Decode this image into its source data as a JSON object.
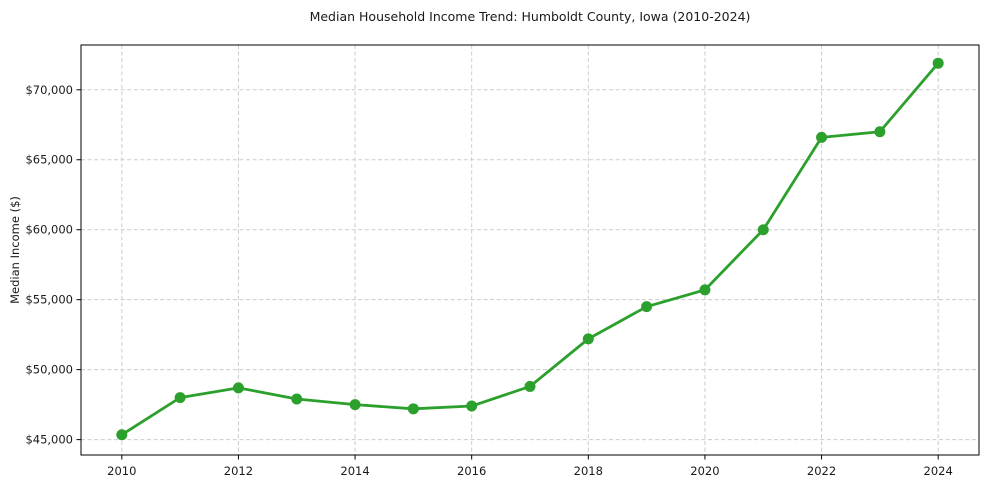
{
  "chart_data": {
    "type": "line",
    "title": "Median Household Income Trend: Humboldt County, Iowa (2010-2024)",
    "xlabel": "",
    "ylabel": "Median Income ($)",
    "x": [
      2010,
      2011,
      2012,
      2013,
      2014,
      2015,
      2016,
      2017,
      2018,
      2019,
      2020,
      2021,
      2022,
      2023,
      2024
    ],
    "series": [
      {
        "name": "median-income",
        "color": "#2ca02c",
        "values": [
          45350,
          48000,
          48700,
          47900,
          47500,
          47200,
          47400,
          48800,
          52200,
          54500,
          55700,
          60000,
          66600,
          67000,
          71900
        ]
      }
    ],
    "xticks": [
      2010,
      2012,
      2014,
      2016,
      2018,
      2020,
      2022,
      2024
    ],
    "xtick_labels": [
      "2010",
      "2012",
      "2014",
      "2016",
      "2018",
      "2020",
      "2022",
      "2024"
    ],
    "yticks": [
      45000,
      50000,
      55000,
      60000,
      65000,
      70000
    ],
    "ytick_labels": [
      "$45,000",
      "$50,000",
      "$55,000",
      "$60,000",
      "$65,000",
      "$70,000"
    ],
    "xlim": [
      2009.3,
      2024.7
    ],
    "ylim": [
      43900,
      73200
    ],
    "grid": true,
    "grid_color": "#cccccc",
    "grid_style": "dashed",
    "axes_color": "#000000",
    "text_color": "#1a1a1a",
    "marker": "circle",
    "legend": false
  }
}
